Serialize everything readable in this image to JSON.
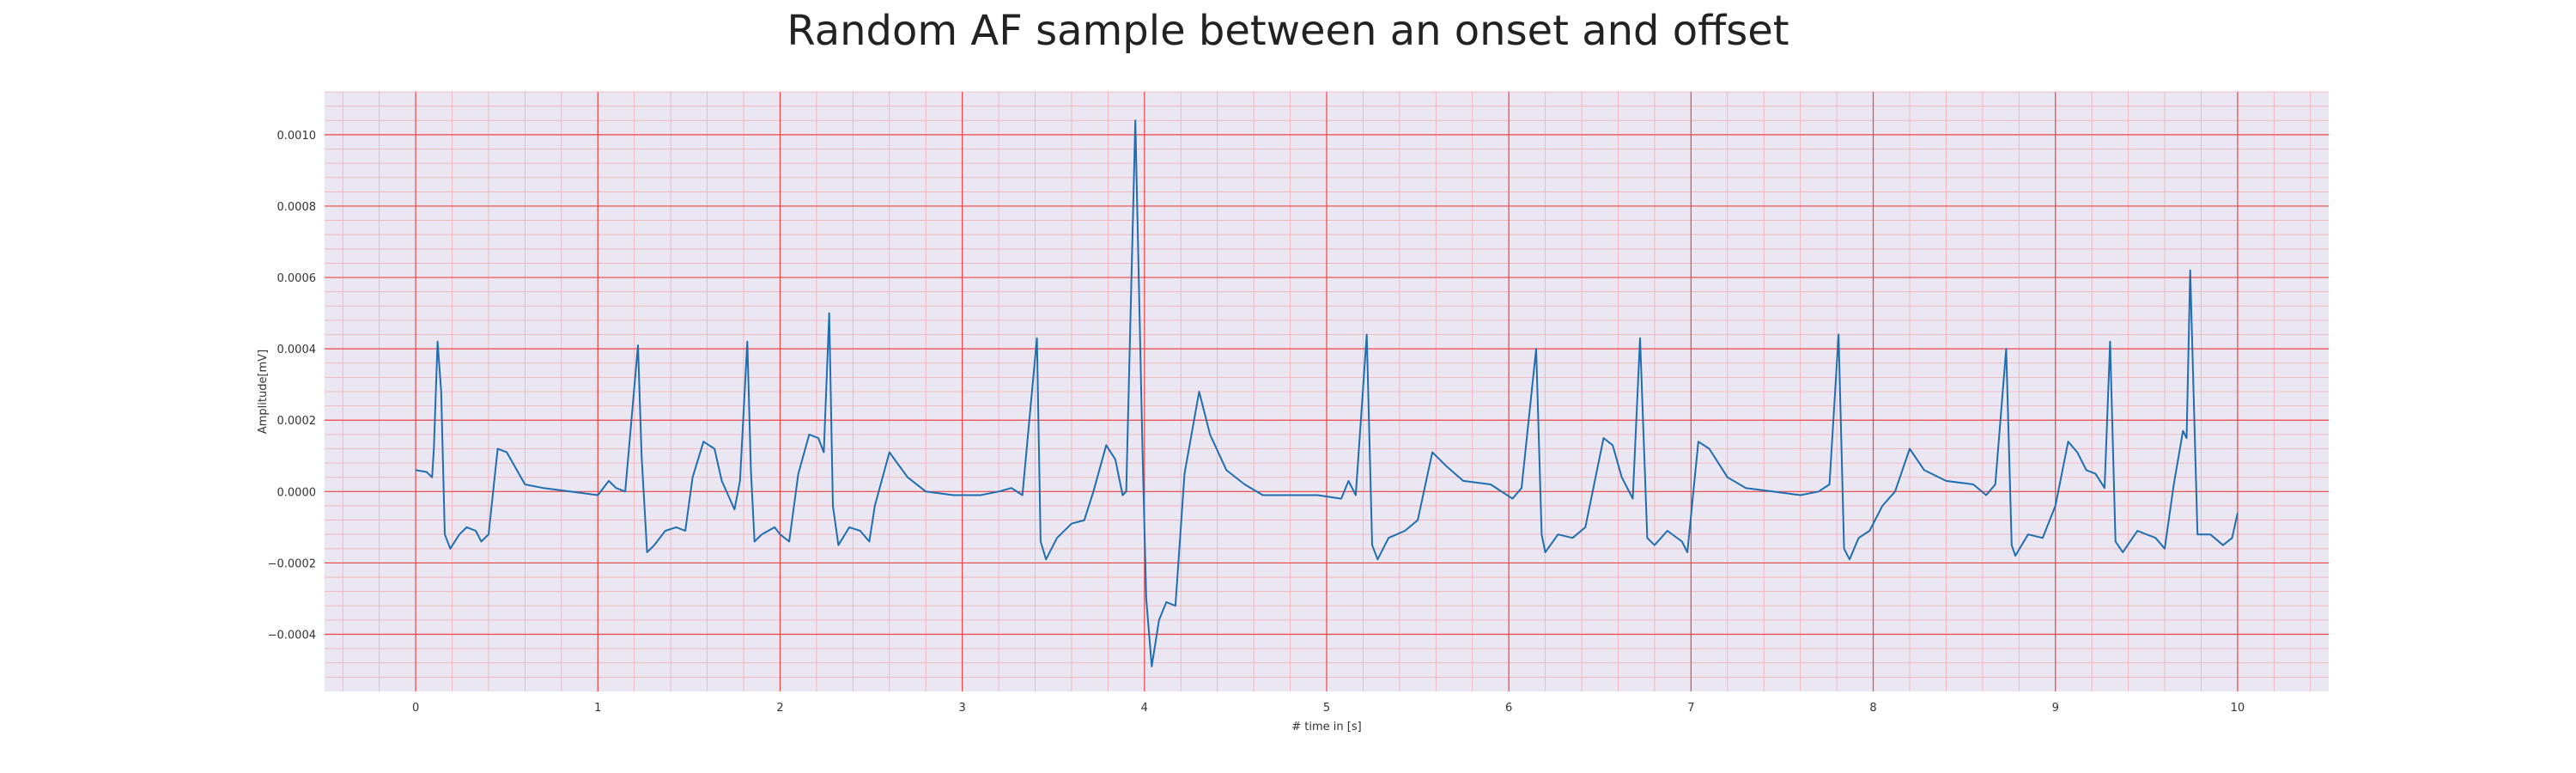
{
  "chart_data": {
    "type": "line",
    "title": "Random AF sample between an onset and offset",
    "xlabel": "# time in [s]",
    "ylabel": "Amplitude[mV]",
    "xlim": [
      -0.5,
      10.5
    ],
    "ylim": [
      -0.00056,
      0.00112
    ],
    "xticks": [
      0,
      1,
      2,
      3,
      4,
      5,
      6,
      7,
      8,
      9,
      10
    ],
    "xtick_labels": [
      "0",
      "1",
      "2",
      "3",
      "4",
      "5",
      "6",
      "7",
      "8",
      "9",
      "10"
    ],
    "yticks": [
      -0.0004,
      -0.0002,
      0.0,
      0.0002,
      0.0004,
      0.0006,
      0.0008,
      0.001
    ],
    "ytick_labels": [
      "−0.0004",
      "−0.0002",
      "0.0000",
      "0.0002",
      "0.0004",
      "0.0006",
      "0.0008",
      "0.0010"
    ],
    "grid": {
      "major": true,
      "minor": true,
      "major_color": "#ee4444",
      "minor_color": "#f4aeb4"
    },
    "background": "#eae6f2",
    "legend": "none",
    "series": [
      {
        "color": "#1f6fb0",
        "points": [
          [
            0.0,
            6e-05
          ],
          [
            0.06,
            5.5e-05
          ],
          [
            0.09,
            4e-05
          ],
          [
            0.1,
            0.00012
          ],
          [
            0.12,
            0.00042
          ],
          [
            0.14,
            0.00028
          ],
          [
            0.16,
            -0.00012
          ],
          [
            0.19,
            -0.00016
          ],
          [
            0.24,
            -0.00012
          ],
          [
            0.28,
            -0.0001
          ],
          [
            0.33,
            -0.00011
          ],
          [
            0.36,
            -0.00014
          ],
          [
            0.4,
            -0.00012
          ],
          [
            0.45,
            0.00012
          ],
          [
            0.5,
            0.00011
          ],
          [
            0.6,
            2e-05
          ],
          [
            0.7,
            1e-05
          ],
          [
            0.85,
            0.0
          ],
          [
            1.0,
            -1e-05
          ],
          [
            1.06,
            3e-05
          ],
          [
            1.1,
            1e-05
          ],
          [
            1.15,
            0.0
          ],
          [
            1.22,
            0.00041
          ],
          [
            1.24,
            0.0001
          ],
          [
            1.27,
            -0.00017
          ],
          [
            1.31,
            -0.00015
          ],
          [
            1.37,
            -0.00011
          ],
          [
            1.43,
            -0.0001
          ],
          [
            1.48,
            -0.00011
          ],
          [
            1.52,
            4e-05
          ],
          [
            1.58,
            0.00014
          ],
          [
            1.64,
            0.00012
          ],
          [
            1.68,
            3e-05
          ],
          [
            1.75,
            -5e-05
          ],
          [
            1.78,
            3e-05
          ],
          [
            1.82,
            0.00042
          ],
          [
            1.84,
            6e-05
          ],
          [
            1.86,
            -0.00014
          ],
          [
            1.9,
            -0.00012
          ],
          [
            1.97,
            -0.0001
          ],
          [
            2.0,
            -0.00012
          ],
          [
            2.05,
            -0.00014
          ],
          [
            2.1,
            5e-05
          ],
          [
            2.16,
            0.00016
          ],
          [
            2.21,
            0.00015
          ],
          [
            2.24,
            0.00011
          ],
          [
            2.27,
            0.0005
          ],
          [
            2.29,
            -4e-05
          ],
          [
            2.32,
            -0.00015
          ],
          [
            2.38,
            -0.0001
          ],
          [
            2.44,
            -0.00011
          ],
          [
            2.49,
            -0.00014
          ],
          [
            2.52,
            -4e-05
          ],
          [
            2.6,
            0.00011
          ],
          [
            2.7,
            4e-05
          ],
          [
            2.8,
            0.0
          ],
          [
            2.95,
            -1e-05
          ],
          [
            3.1,
            -1e-05
          ],
          [
            3.2,
            0.0
          ],
          [
            3.27,
            1e-05
          ],
          [
            3.33,
            -1e-05
          ],
          [
            3.41,
            0.00043
          ],
          [
            3.43,
            -0.00014
          ],
          [
            3.46,
            -0.00019
          ],
          [
            3.52,
            -0.00013
          ],
          [
            3.6,
            -9e-05
          ],
          [
            3.67,
            -8e-05
          ],
          [
            3.72,
            0.0
          ],
          [
            3.79,
            0.00013
          ],
          [
            3.84,
            9e-05
          ],
          [
            3.88,
            -1e-05
          ],
          [
            3.9,
            0.0
          ],
          [
            3.95,
            0.00104
          ],
          [
            3.99,
            0.0001
          ],
          [
            4.01,
            -0.0003
          ],
          [
            4.04,
            -0.00049
          ],
          [
            4.08,
            -0.00036
          ],
          [
            4.12,
            -0.00031
          ],
          [
            4.17,
            -0.00032
          ],
          [
            4.22,
            5e-05
          ],
          [
            4.3,
            0.00028
          ],
          [
            4.36,
            0.00016
          ],
          [
            4.45,
            6e-05
          ],
          [
            4.55,
            2e-05
          ],
          [
            4.65,
            -1e-05
          ],
          [
            4.8,
            -1e-05
          ],
          [
            4.95,
            -1e-05
          ],
          [
            5.08,
            -2e-05
          ],
          [
            5.12,
            3e-05
          ],
          [
            5.16,
            -1e-05
          ],
          [
            5.22,
            0.00044
          ],
          [
            5.25,
            -0.00015
          ],
          [
            5.28,
            -0.00019
          ],
          [
            5.34,
            -0.00013
          ],
          [
            5.43,
            -0.00011
          ],
          [
            5.5,
            -8e-05
          ],
          [
            5.58,
            0.00011
          ],
          [
            5.66,
            7e-05
          ],
          [
            5.75,
            3e-05
          ],
          [
            5.9,
            2e-05
          ],
          [
            6.02,
            -2e-05
          ],
          [
            6.07,
            1e-05
          ],
          [
            6.15,
            0.0004
          ],
          [
            6.18,
            -0.00012
          ],
          [
            6.2,
            -0.00017
          ],
          [
            6.27,
            -0.00012
          ],
          [
            6.35,
            -0.00013
          ],
          [
            6.42,
            -0.0001
          ],
          [
            6.52,
            0.00015
          ],
          [
            6.57,
            0.00013
          ],
          [
            6.62,
            4e-05
          ],
          [
            6.68,
            -2e-05
          ],
          [
            6.72,
            0.00043
          ],
          [
            6.76,
            -0.00013
          ],
          [
            6.8,
            -0.00015
          ],
          [
            6.87,
            -0.00011
          ],
          [
            6.95,
            -0.00014
          ],
          [
            6.98,
            -0.00017
          ],
          [
            7.04,
            0.00014
          ],
          [
            7.1,
            0.00012
          ],
          [
            7.2,
            4e-05
          ],
          [
            7.3,
            1e-05
          ],
          [
            7.45,
            0.0
          ],
          [
            7.6,
            -1e-05
          ],
          [
            7.7,
            0.0
          ],
          [
            7.76,
            2e-05
          ],
          [
            7.81,
            0.00044
          ],
          [
            7.84,
            -0.00016
          ],
          [
            7.87,
            -0.00019
          ],
          [
            7.92,
            -0.00013
          ],
          [
            7.98,
            -0.00011
          ],
          [
            8.05,
            -4e-05
          ],
          [
            8.12,
            0.0
          ],
          [
            8.2,
            0.00012
          ],
          [
            8.28,
            6e-05
          ],
          [
            8.4,
            3e-05
          ],
          [
            8.55,
            2e-05
          ],
          [
            8.62,
            -1e-05
          ],
          [
            8.67,
            2e-05
          ],
          [
            8.73,
            0.0004
          ],
          [
            8.76,
            -0.00015
          ],
          [
            8.78,
            -0.00018
          ],
          [
            8.85,
            -0.00012
          ],
          [
            8.93,
            -0.00013
          ],
          [
            9.0,
            -4e-05
          ],
          [
            9.07,
            0.00014
          ],
          [
            9.12,
            0.00011
          ],
          [
            9.17,
            6e-05
          ],
          [
            9.22,
            5e-05
          ],
          [
            9.27,
            1e-05
          ],
          [
            9.3,
            0.00042
          ],
          [
            9.33,
            -0.00014
          ],
          [
            9.37,
            -0.00017
          ],
          [
            9.45,
            -0.00011
          ],
          [
            9.55,
            -0.00013
          ],
          [
            9.6,
            -0.00016
          ],
          [
            9.65,
            2e-05
          ],
          [
            9.7,
            0.00017
          ],
          [
            9.72,
            0.00015
          ],
          [
            9.74,
            0.00062
          ],
          [
            9.78,
            -0.00012
          ],
          [
            9.85,
            -0.00012
          ],
          [
            9.92,
            -0.00015
          ],
          [
            9.97,
            -0.00013
          ],
          [
            10.0,
            -6e-05
          ]
        ]
      }
    ]
  }
}
